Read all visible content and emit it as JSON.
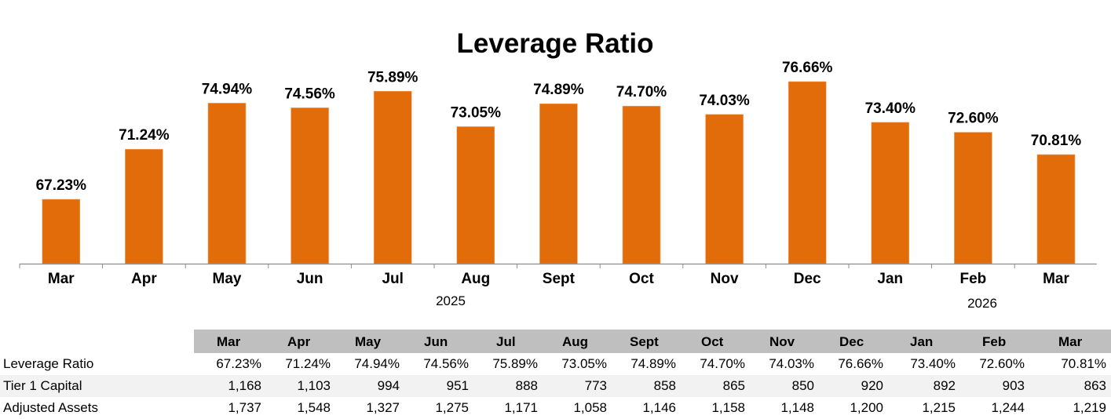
{
  "chart_data": {
    "type": "bar",
    "title": "Leverage Ratio",
    "categories": [
      "Mar",
      "Apr",
      "May",
      "Jun",
      "Jul",
      "Aug",
      "Sept",
      "Oct",
      "Nov",
      "Dec",
      "Jan",
      "Feb",
      "Mar"
    ],
    "values": [
      67.23,
      71.24,
      74.94,
      74.56,
      75.89,
      73.05,
      74.89,
      74.7,
      74.03,
      76.66,
      73.4,
      72.6,
      70.81
    ],
    "data_labels": [
      "67.23%",
      "71.24%",
      "74.94%",
      "74.56%",
      "75.89%",
      "73.05%",
      "74.89%",
      "74.70%",
      "74.03%",
      "76.66%",
      "73.40%",
      "72.60%",
      "70.81%"
    ],
    "year_labels": [
      "2025",
      "2026"
    ],
    "xlabel": "",
    "ylabel": "",
    "ylim": [
      62.07,
      78
    ],
    "y_axis_visible": false,
    "grid": false,
    "legend": "none",
    "bar_color": "#e36c0a"
  },
  "table": {
    "headers": [
      "Mar",
      "Apr",
      "May",
      "Jun",
      "Jul",
      "Aug",
      "Sept",
      "Oct",
      "Nov",
      "Dec",
      "Jan",
      "Feb",
      "Mar"
    ],
    "rows": [
      {
        "label": "Leverage Ratio",
        "values": [
          "67.23%",
          "71.24%",
          "74.94%",
          "74.56%",
          "75.89%",
          "73.05%",
          "74.89%",
          "74.70%",
          "74.03%",
          "76.66%",
          "73.40%",
          "72.60%",
          "70.81%"
        ]
      },
      {
        "label": "Tier 1 Capital",
        "values": [
          "1,168",
          "1,103",
          "994",
          "951",
          "888",
          "773",
          "858",
          "865",
          "850",
          "920",
          "892",
          "903",
          "863"
        ]
      },
      {
        "label": "Adjusted Assets",
        "values": [
          "1,737",
          "1,548",
          "1,327",
          "1,275",
          "1,171",
          "1,058",
          "1,146",
          "1,158",
          "1,148",
          "1,200",
          "1,215",
          "1,244",
          "1,219"
        ]
      }
    ],
    "header_bg": "#bfbfbf",
    "shade_bg": "#f2f2f2"
  }
}
